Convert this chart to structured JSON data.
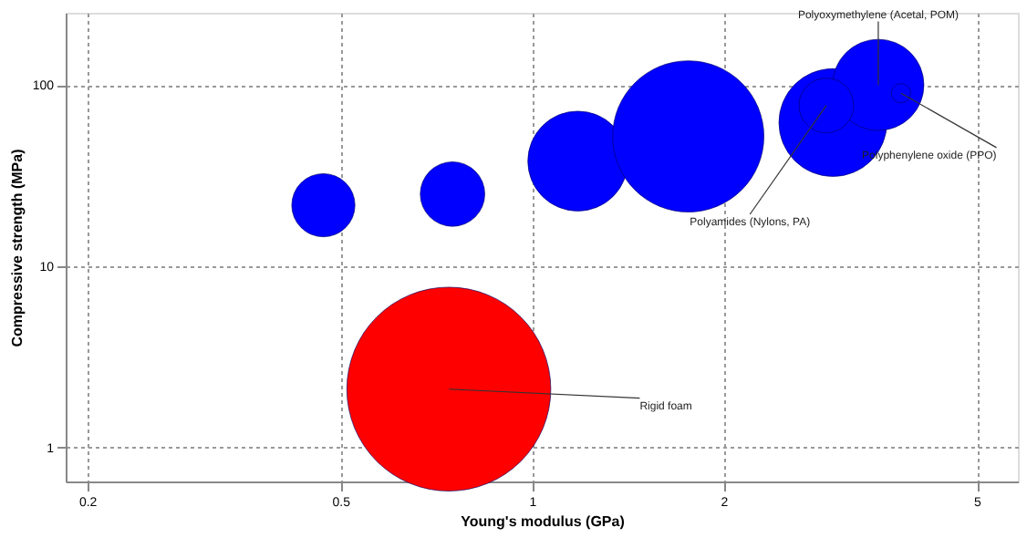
{
  "chart_data": {
    "type": "bubble",
    "xlabel": "Young's modulus (GPa)",
    "ylabel": "Compressive strength (MPa)",
    "log": "xy",
    "xlim": [
      0.185,
      5.8
    ],
    "xticks": [
      0.2,
      0.5,
      1,
      2,
      5
    ],
    "ylim": [
      0.65,
      250
    ],
    "yticks": [
      1,
      10,
      100
    ],
    "grid": true,
    "series": [
      {
        "color": "#0000ff",
        "x": [
          0.47,
          0.75,
          1.18,
          1.76,
          2.97,
          3.5,
          2.9,
          3.8
        ],
        "values": [
          21.7,
          25,
          38,
          52,
          62,
          100,
          77,
          90
        ],
        "sizes": [
          0.096,
          0.1,
          0.24,
          0.55,
          0.28,
          0.2,
          0.072,
          0.009
        ]
      },
      {
        "color": "#ff0000",
        "x": [
          0.74
        ],
        "values": [
          2.1
        ],
        "sizes": [
          1
        ]
      }
    ],
    "annotations": [
      {
        "text": "Polyoxymethylene (Acetal, POM)",
        "x": 3.5,
        "y": 100
      },
      {
        "text": "Polyamides (Nylons, PA)",
        "x": 2.9,
        "y": 77
      },
      {
        "text": "Polyphenylene oxide (PPO)",
        "x": 3.8,
        "y": 90
      },
      {
        "text": "Rigid foam",
        "x": 0.74,
        "y": 2.1
      }
    ]
  }
}
